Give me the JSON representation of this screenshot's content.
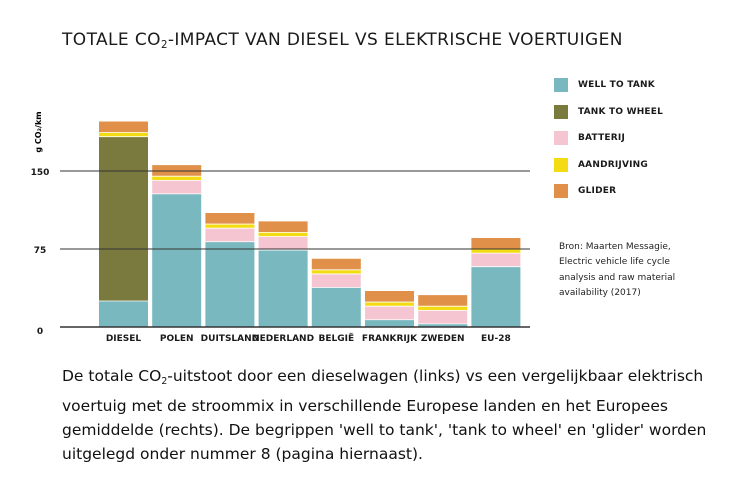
{
  "header": {
    "title_pre": "TOTALE CO",
    "title_sub": "2",
    "title_post": "-IMPACT VAN DIESEL VS ELEKTRISCHE VOERTUIGEN"
  },
  "source": {
    "text": "Bron: Maarten Messagie, Electric vehicle life cycle analysis and raw material availability (2017)"
  },
  "caption": {
    "pre": "De totale CO",
    "sub": "2",
    "post": "-uitstoot door een dieselwagen (links) vs een vergelijkbaar elektrisch voertuig met de stroommix in verschillende Europese landen en het Europees gemiddelde (rechts). De begrippen 'well to tank', 'tank to wheel' en 'glider' worden uitgelegd onder nummer 8 (pagina hiernaast)."
  },
  "colors": {
    "well_to_tank": "#78b8be",
    "tank_to_wheel": "#7a7a3f",
    "batterij": "#f5c6d2",
    "aandrijving": "#f4dc14",
    "glider": "#e09048",
    "axis": "#333333",
    "gridline": "#333333"
  },
  "chart_data": {
    "type": "bar",
    "stacked": true,
    "ylabel": "g CO₂/km",
    "ylim": [
      0,
      210
    ],
    "yticks": [
      0,
      75,
      150
    ],
    "gridlines": [
      75,
      150
    ],
    "legend_position": "right",
    "categories": [
      "DIESEL",
      "POLEN",
      "DUITSLAND",
      "NEDERLAND",
      "BELGIË",
      "FRANKRIJK",
      "ZWEDEN",
      "EU-28"
    ],
    "series": [
      {
        "name": "WELL TO TANK",
        "color_key": "well_to_tank",
        "values": [
          25,
          128,
          82,
          74,
          38,
          7,
          3,
          58
        ]
      },
      {
        "name": "TANK TO WHEEL",
        "color_key": "tank_to_wheel",
        "values": [
          158,
          0,
          0,
          0,
          0,
          0,
          0,
          0
        ]
      },
      {
        "name": "BATTERIJ",
        "color_key": "batterij",
        "values": [
          0,
          13,
          13,
          13,
          13,
          13,
          13,
          13
        ]
      },
      {
        "name": "AANDRIJVING",
        "color_key": "aandrijving",
        "values": [
          4,
          4,
          4,
          4,
          4,
          4,
          4,
          4
        ]
      },
      {
        "name": "GLIDER",
        "color_key": "glider",
        "values": [
          11,
          11,
          11,
          11,
          11,
          11,
          11,
          11
        ]
      }
    ]
  }
}
